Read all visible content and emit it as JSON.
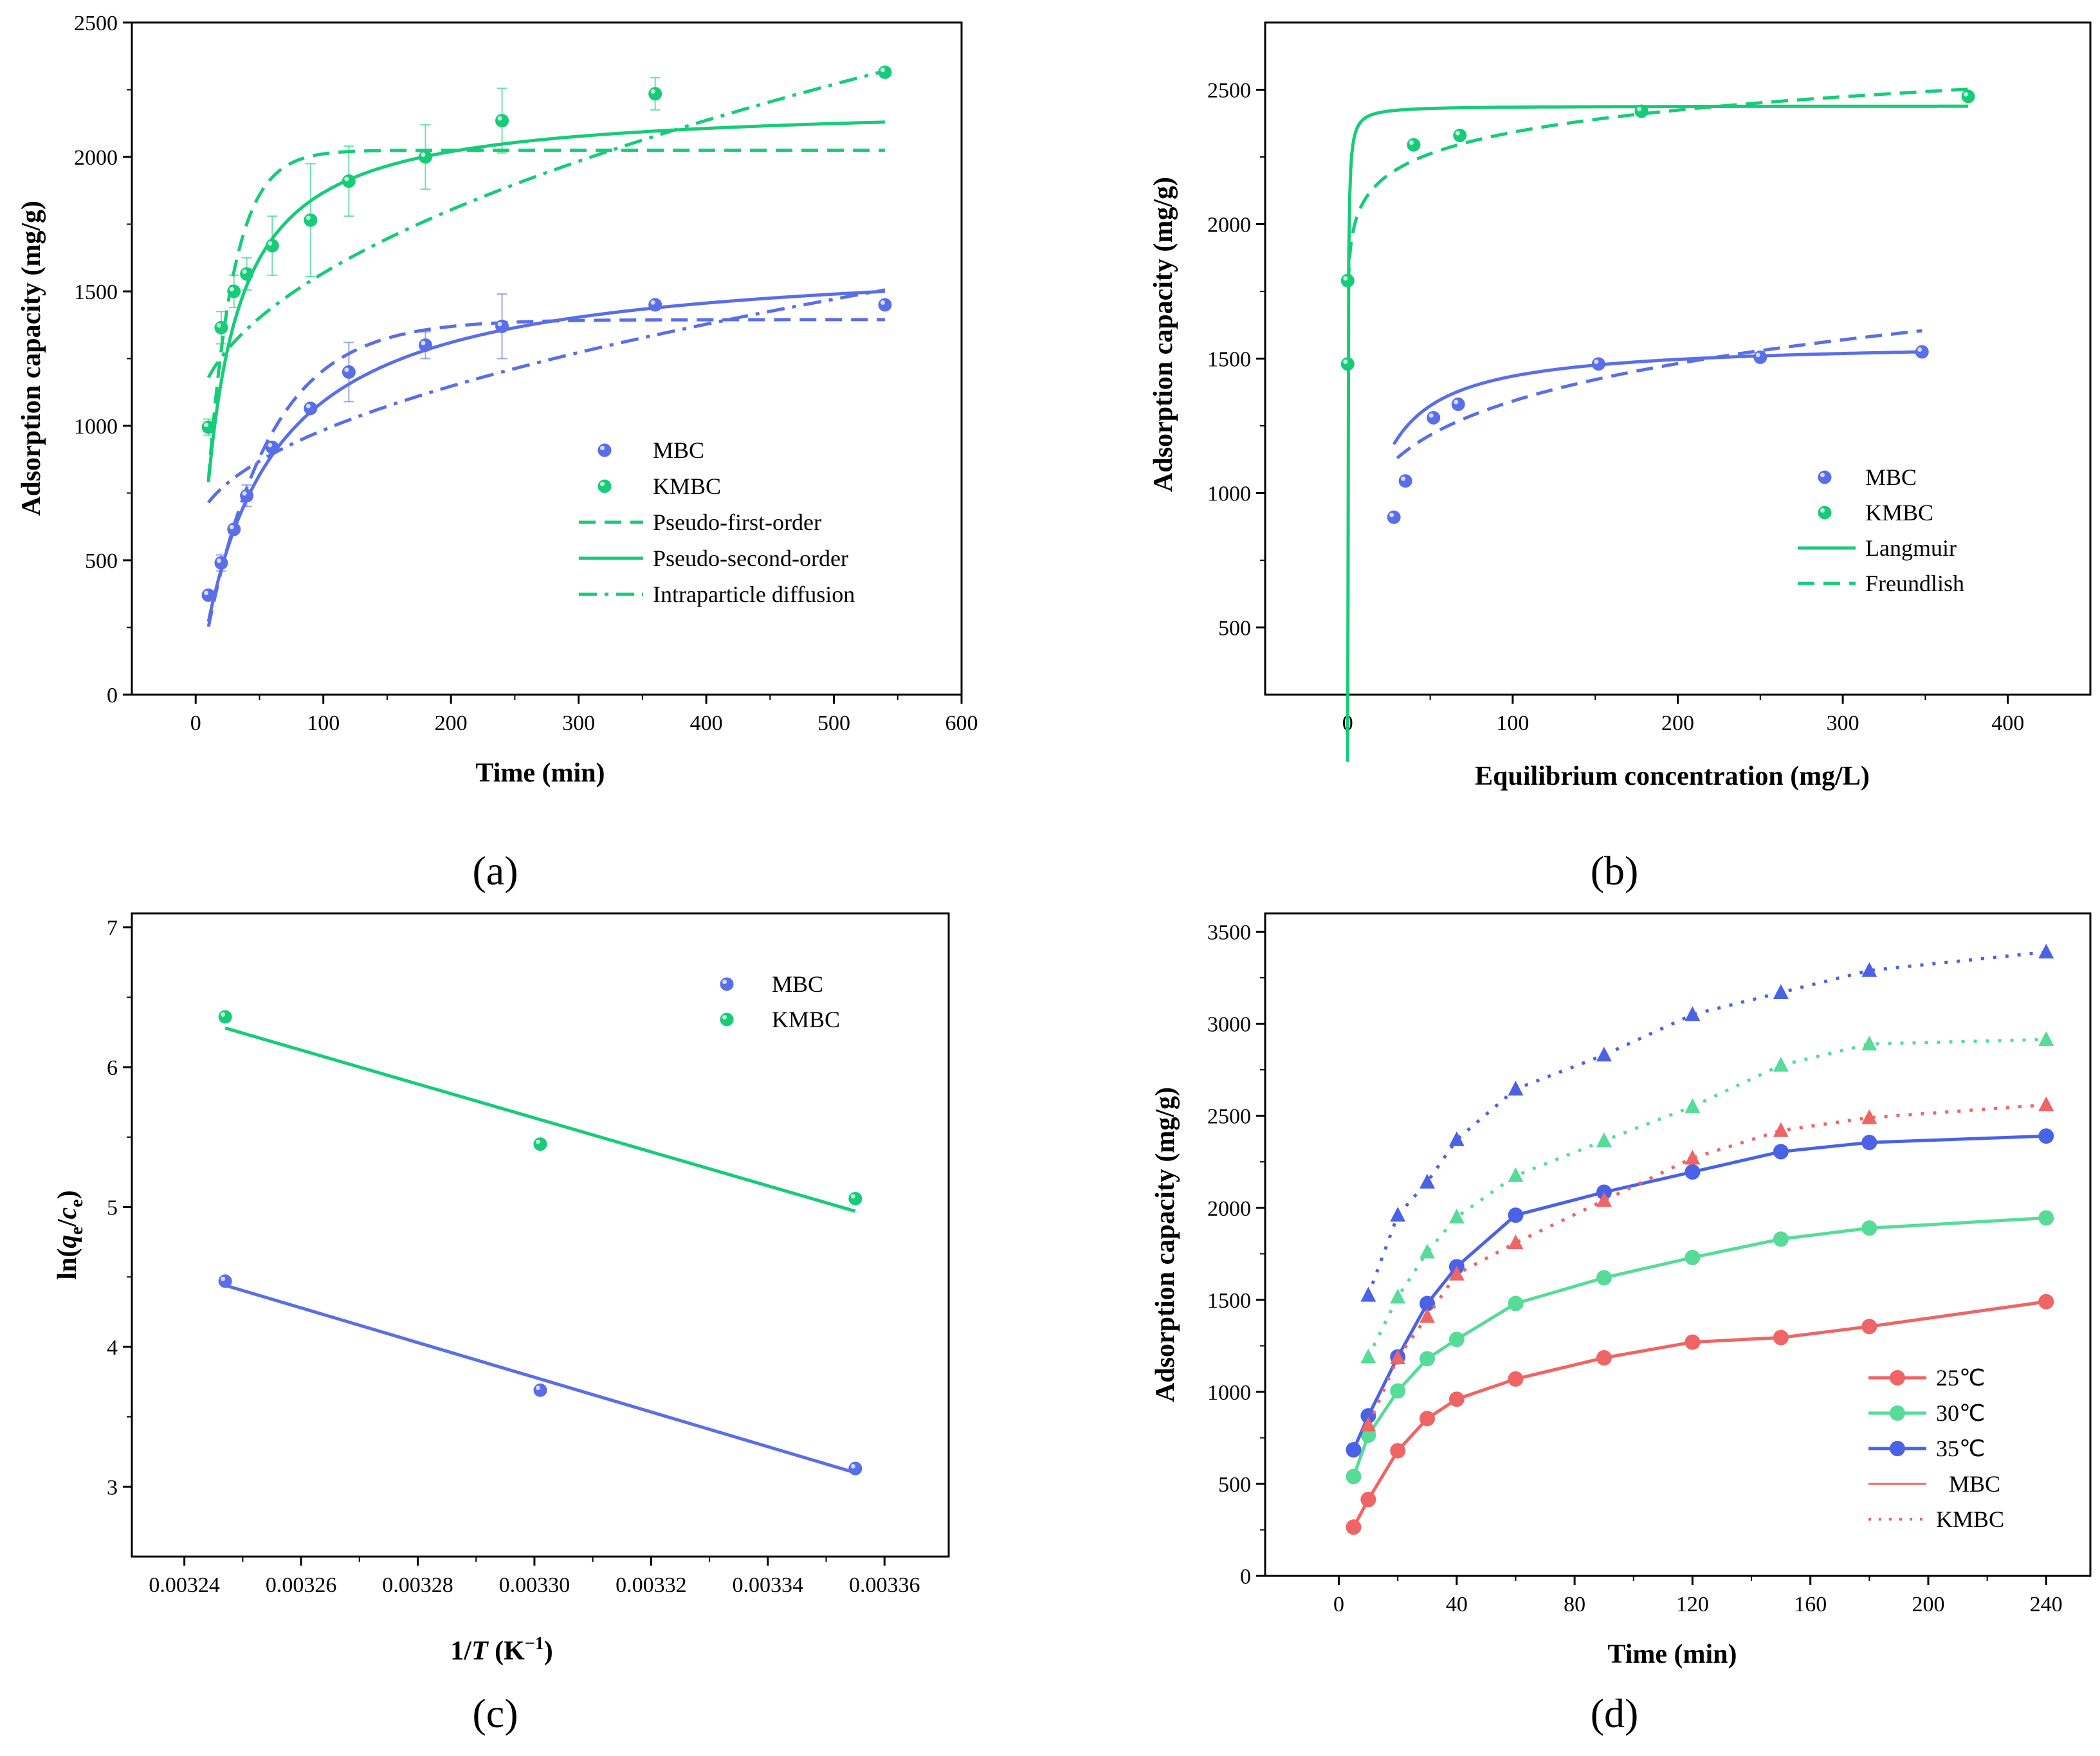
{
  "colors": {
    "mbc": "#5a6ee8",
    "kmbc": "#16cc78",
    "t25": "#ef6464",
    "t30": "#56dc98",
    "t35": "#4a62e6"
  },
  "chart_data": [
    {
      "type": "scatter",
      "panel": "(a)",
      "xlabel": "Time (min)",
      "ylabel": "Adsorption capacity (mg/g)",
      "xlim": [
        -50,
        600
      ],
      "ylim": [
        0,
        2500
      ],
      "xticks": [
        0,
        100,
        200,
        300,
        400,
        500,
        600
      ],
      "yticks": [
        0,
        500,
        1000,
        1500,
        2000,
        2500
      ],
      "series": [
        {
          "name": "MBC",
          "x": [
            10,
            20,
            30,
            40,
            60,
            90,
            120,
            180,
            240,
            360,
            540
          ],
          "y": [
            370,
            490,
            615,
            740,
            920,
            1065,
            1200,
            1300,
            1370,
            1450,
            1450
          ],
          "err": [
            0,
            30,
            0,
            40,
            0,
            0,
            110,
            50,
            120,
            0,
            0
          ]
        },
        {
          "name": "KMBC",
          "x": [
            10,
            20,
            30,
            40,
            60,
            90,
            120,
            180,
            240,
            360,
            540
          ],
          "y": [
            995,
            1365,
            1500,
            1565,
            1670,
            1765,
            1910,
            2000,
            2135,
            2235,
            2315
          ],
          "err": [
            30,
            60,
            60,
            60,
            110,
            210,
            130,
            120,
            120,
            60,
            0
          ]
        }
      ],
      "fits": [
        {
          "name": "Pseudo-first-order",
          "style": "dashed",
          "params": {
            "MBC": {
              "qe": 1395,
              "k": 0.02
            },
            "KMBC": {
              "qe": 2025,
              "k": 0.05
            }
          }
        },
        {
          "name": "Pseudo-second-order",
          "style": "solid",
          "params": {
            "MBC": {
              "qe": 1640,
              "k": 1.21e-05
            },
            "KMBC": {
              "qe": 2200,
              "k": 2.55e-05
            }
          }
        },
        {
          "name": "Intraparticle diffusion",
          "style": "dashdot",
          "params": {
            "MBC": {
              "kid": 39.4,
              "C": 590
            },
            "KMBC": {
              "kid": 56.8,
              "C": 1000
            }
          }
        }
      ],
      "legend": [
        "MBC",
        "KMBC",
        "Pseudo-first-order",
        "Pseudo-second-order",
        "Intraparticle diffusion"
      ]
    },
    {
      "type": "scatter",
      "panel": "(b)",
      "xlabel": "Equilibrium concentration (mg/L)",
      "ylabel": "Adsorption capacity (mg/g)",
      "xlim": [
        -50,
        450
      ],
      "ylim": [
        250,
        2750
      ],
      "xticks": [
        0,
        100,
        200,
        300,
        400
      ],
      "yticks": [
        500,
        1000,
        1500,
        2000,
        2500
      ],
      "series": [
        {
          "name": "MBC",
          "x": [
            28,
            35,
            52,
            67,
            152,
            250,
            348
          ],
          "y": [
            910,
            1045,
            1280,
            1330,
            1480,
            1505,
            1525
          ]
        },
        {
          "name": "KMBC",
          "x": [
            0,
            0,
            40,
            68,
            178,
            376
          ],
          "y": [
            1480,
            1790,
            2295,
            2330,
            2420,
            2475
          ]
        }
      ],
      "fits": [
        {
          "name": "Langmuir",
          "style": "solid",
          "params": {
            "MBC": {
              "qm": 1565,
              "KL": 0.11,
              "xmin": 28,
              "xmax": 348
            },
            "KMBC": {
              "qm": 2440,
              "KL": 5.0,
              "xmin": 0,
              "xmax": 376
            }
          }
        },
        {
          "name": "Freundlish",
          "style": "dashed",
          "params": {
            "MBC": {
              "KF": 695,
              "n": 7.0,
              "xmin": 30,
              "xmax": 348
            },
            "KMBC": {
              "KF": 1860,
              "n": 20.0,
              "xmin": 0.4,
              "xmax": 376
            }
          }
        }
      ],
      "legend": [
        "MBC",
        "KMBC",
        "Langmuir",
        "Freundlish"
      ]
    },
    {
      "type": "scatter",
      "panel": "(c)",
      "xlabel_pre": "1/",
      "xlabel_var": "T",
      "xlabel_unit": " (K",
      "xlabel_sup": "−1",
      "xlabel_close": ")",
      "ylabel_pre": "ln(",
      "ylabel_q": "q",
      "ylabel_sub1": "e",
      "ylabel_slash": "/",
      "ylabel_c": "c",
      "ylabel_sub2": "e",
      "ylabel_close": ")",
      "xlim": [
        0.003231,
        0.003371
      ],
      "ylim": [
        2.5,
        7.1
      ],
      "xticks": [
        0.00324,
        0.00326,
        0.00328,
        0.0033,
        0.00332,
        0.00334,
        0.00336
      ],
      "xticklabels": [
        "0.00324",
        "0.00326",
        "0.00328",
        "0.00330",
        "0.00332",
        "0.00334",
        "0.00336"
      ],
      "yticks": [
        3,
        4,
        5,
        6,
        7
      ],
      "series": [
        {
          "name": "MBC",
          "x": [
            0.003247,
            0.003301,
            0.003355
          ],
          "y": [
            4.47,
            3.69,
            3.13
          ]
        },
        {
          "name": "KMBC",
          "x": [
            0.003247,
            0.003301,
            0.003355
          ],
          "y": [
            6.36,
            5.45,
            5.06
          ]
        }
      ],
      "fits": [
        {
          "name": "MBC",
          "x": [
            0.003247,
            0.003355
          ],
          "y": [
            4.44,
            3.1
          ]
        },
        {
          "name": "KMBC",
          "x": [
            0.003247,
            0.003355
          ],
          "y": [
            6.28,
            4.97
          ]
        }
      ],
      "legend": [
        "MBC",
        "KMBC"
      ]
    },
    {
      "type": "line",
      "panel": "(d)",
      "xlabel": "Time (min)",
      "ylabel": "Adsorption capacity (mg/g)",
      "xlim": [
        -25,
        255
      ],
      "ylim": [
        0,
        3600
      ],
      "xticks": [
        0,
        40,
        80,
        120,
        160,
        200,
        240
      ],
      "yticks": [
        0,
        500,
        1000,
        1500,
        2000,
        2500,
        3000,
        3500
      ],
      "x": [
        5,
        10,
        20,
        30,
        40,
        60,
        90,
        120,
        150,
        180,
        240
      ],
      "series": [
        {
          "name": "25℃",
          "material": "MBC",
          "y": [
            265,
            415,
            680,
            855,
            960,
            1070,
            1185,
            1270,
            1295,
            1355,
            1490
          ]
        },
        {
          "name": "30℃",
          "material": "MBC",
          "y": [
            540,
            765,
            1005,
            1180,
            1285,
            1480,
            1620,
            1730,
            1830,
            1890,
            1945
          ]
        },
        {
          "name": "35℃",
          "material": "MBC",
          "y": [
            685,
            870,
            1190,
            1480,
            1680,
            1960,
            2085,
            2195,
            2305,
            2355,
            2390
          ]
        },
        {
          "name": "25℃",
          "material": "KMBC",
          "y": [
            null,
            820,
            1185,
            1410,
            1640,
            1810,
            2040,
            2270,
            2420,
            2490,
            2560
          ]
        },
        {
          "name": "30℃",
          "material": "KMBC",
          "y": [
            null,
            1190,
            1515,
            1760,
            1950,
            2175,
            2365,
            2550,
            2775,
            2890,
            2915
          ]
        },
        {
          "name": "35℃",
          "material": "KMBC",
          "y": [
            null,
            1525,
            1960,
            2140,
            2370,
            2645,
            2830,
            3050,
            3170,
            3290,
            3390
          ]
        }
      ],
      "legend": [
        "25℃",
        "30℃",
        "35℃",
        "MBC",
        "KMBC"
      ]
    }
  ]
}
